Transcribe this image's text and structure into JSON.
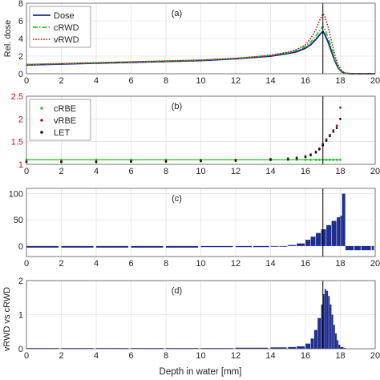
{
  "figure": {
    "xlabel": "Depth in water [mm]",
    "shared_ylabel": "vRWD vs cRWD"
  },
  "chart_data": [
    {
      "panel_label": "(a)",
      "type": "line",
      "ylabel": "Rel. dose",
      "xlim": [
        0,
        20
      ],
      "ylim": [
        0,
        8
      ],
      "xticks": [
        0,
        2,
        4,
        6,
        8,
        10,
        12,
        14,
        16,
        18,
        20
      ],
      "yticks": [
        0,
        2,
        4,
        6,
        8
      ],
      "grid": true,
      "legend_position": "top-left",
      "vline_x": 17.0,
      "x": [
        0,
        2,
        4,
        6,
        8,
        10,
        12,
        13,
        14,
        15,
        15.5,
        16,
        16.3,
        16.6,
        16.8,
        17.0,
        17.1,
        17.3,
        17.5,
        17.7,
        17.9,
        18.1,
        18.3,
        18.6,
        20
      ],
      "series": [
        {
          "name": "Dose",
          "color": "#1f2f8f",
          "style": "solid",
          "values": [
            1.0,
            1.1,
            1.2,
            1.3,
            1.4,
            1.5,
            1.7,
            1.85,
            2.0,
            2.3,
            2.5,
            2.9,
            3.3,
            3.9,
            4.4,
            4.8,
            4.5,
            3.6,
            2.5,
            1.4,
            0.6,
            0.2,
            0.05,
            0.0,
            0.0
          ]
        },
        {
          "name": "cRWD",
          "color": "#22cc22",
          "style": "dashdot",
          "values": [
            1.05,
            1.15,
            1.25,
            1.35,
            1.45,
            1.55,
            1.75,
            1.9,
            2.1,
            2.4,
            2.65,
            3.1,
            3.6,
            4.3,
            4.9,
            5.4,
            5.1,
            4.1,
            2.9,
            1.6,
            0.7,
            0.25,
            0.05,
            0.0,
            0.0
          ]
        },
        {
          "name": "vRWD",
          "color": "#cc1111",
          "style": "dotted",
          "values": [
            1.05,
            1.15,
            1.25,
            1.35,
            1.45,
            1.55,
            1.75,
            1.9,
            2.1,
            2.45,
            2.75,
            3.3,
            4.0,
            5.0,
            6.0,
            6.8,
            6.6,
            5.3,
            3.7,
            2.0,
            0.9,
            0.3,
            0.05,
            0.0,
            0.0
          ]
        }
      ]
    },
    {
      "panel_label": "(b)",
      "type": "scatter",
      "ylabel": "",
      "xlim": [
        0,
        20
      ],
      "ylim": [
        1,
        2.5
      ],
      "xticks": [
        0,
        2,
        4,
        6,
        8,
        10,
        12,
        14,
        16,
        18,
        20
      ],
      "yticks": [
        1,
        1.5,
        2,
        2.5
      ],
      "ytick_labels": [
        "1",
        "1.5",
        "2",
        "2.5"
      ],
      "ytick_color": "#cc1111",
      "grid": true,
      "legend_position": "top-left",
      "vline_x": 17.0,
      "x": [
        0,
        2,
        4,
        6,
        8,
        10,
        12,
        14,
        15,
        15.5,
        16,
        16.3,
        16.6,
        16.8,
        17.0,
        17.2,
        17.4,
        17.6,
        17.8,
        18.0
      ],
      "series": [
        {
          "name": "cRBE",
          "color": "#22cc22",
          "marker": "dot",
          "values": [
            1.1,
            1.1,
            1.1,
            1.1,
            1.1,
            1.1,
            1.1,
            1.1,
            1.1,
            1.1,
            1.1,
            1.1,
            1.1,
            1.1,
            1.1,
            1.1,
            1.1,
            1.1,
            1.1,
            1.1
          ]
        },
        {
          "name": "vRBE",
          "color": "#cc1111",
          "marker": "dot",
          "values": [
            1.07,
            1.07,
            1.07,
            1.08,
            1.08,
            1.09,
            1.1,
            1.12,
            1.13,
            1.15,
            1.18,
            1.22,
            1.28,
            1.35,
            1.45,
            1.55,
            1.65,
            1.75,
            1.85,
            2.25
          ]
        },
        {
          "name": "LET",
          "color": "#111111",
          "marker": "dot",
          "values": [
            1.05,
            1.05,
            1.05,
            1.06,
            1.06,
            1.07,
            1.08,
            1.1,
            1.11,
            1.13,
            1.16,
            1.2,
            1.26,
            1.33,
            1.42,
            1.52,
            1.62,
            1.72,
            1.8,
            2.0
          ]
        }
      ]
    },
    {
      "panel_label": "(c)",
      "type": "bar",
      "ylabel": "",
      "xlim": [
        0,
        20
      ],
      "ylim": [
        -20,
        110
      ],
      "xticks": [
        0,
        2,
        4,
        6,
        8,
        10,
        12,
        14,
        16,
        18,
        20
      ],
      "yticks": [
        0,
        50,
        100
      ],
      "grid": true,
      "vline_x": 17.0,
      "bar_color": "#1f2f8f",
      "x": [
        0,
        2,
        4,
        6,
        8,
        10,
        12,
        13,
        14,
        14.5,
        15,
        15.5,
        16,
        16.3,
        16.6,
        16.9,
        17.2,
        17.5,
        17.8,
        18.0,
        18.1,
        18.3,
        18.8,
        19.2,
        19.8
      ],
      "values": [
        -3,
        -3,
        -3,
        -3,
        -3,
        -2,
        -2,
        -2,
        -1,
        0,
        2,
        5,
        12,
        18,
        25,
        32,
        40,
        48,
        55,
        58,
        100,
        -8,
        -8,
        -8,
        -8
      ]
    },
    {
      "panel_label": "(d)",
      "type": "bar",
      "ylabel": "",
      "xlim": [
        0,
        20
      ],
      "ylim": [
        0,
        2
      ],
      "xticks": [
        0,
        2,
        4,
        6,
        8,
        10,
        12,
        14,
        16,
        18,
        20
      ],
      "yticks": [
        0,
        1,
        2
      ],
      "grid": true,
      "vline_x": 17.0,
      "bar_color": "#1f2f8f",
      "x": [
        0,
        2,
        4,
        6,
        8,
        10,
        12,
        14,
        15,
        15.5,
        16,
        16.3,
        16.5,
        16.7,
        16.9,
        17.0,
        17.1,
        17.2,
        17.3,
        17.4,
        17.5,
        17.6,
        17.7,
        17.8,
        17.9,
        18.0,
        18.2
      ],
      "values": [
        0.02,
        0.02,
        0.02,
        0.02,
        0.02,
        0.02,
        0.03,
        0.04,
        0.05,
        0.07,
        0.15,
        0.3,
        0.55,
        0.9,
        1.3,
        1.6,
        1.75,
        1.7,
        1.55,
        1.3,
        1.0,
        0.7,
        0.45,
        0.25,
        0.12,
        0.05,
        0.02
      ]
    }
  ]
}
